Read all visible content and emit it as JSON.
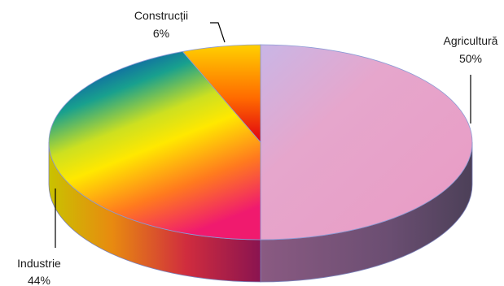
{
  "chart_data": {
    "type": "pie",
    "style": "3d",
    "categories": [
      "Agricultură",
      "Industrie",
      "Construcții"
    ],
    "values": [
      50,
      44,
      6
    ],
    "value_labels": [
      "50%",
      "44%",
      "6%"
    ],
    "colors": {
      "agricultura": "#e8a2c8",
      "industrie": "rainbow-gradient",
      "constructii": "orange-red-gradient"
    },
    "title": "",
    "legend": "none"
  }
}
